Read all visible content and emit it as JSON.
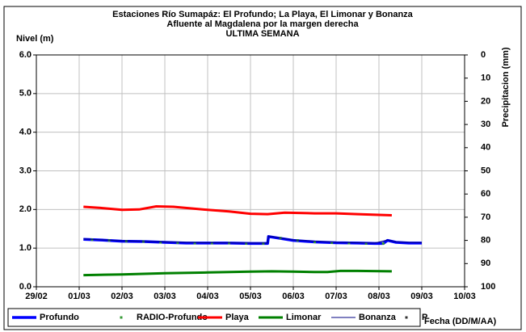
{
  "chart_data": {
    "type": "line",
    "title": "Estaciones Río Sumapáz: El Profundo; La Playa, El Limonar y Bonanza",
    "subtitle": [
      "Afluente al Magdalena por la margen derecha",
      "ULTIMA SEMANA"
    ],
    "y_label": "Nivel (m)",
    "y2_label": "Precipitacion (mm)",
    "x_label": "Fecha (DD/M/AA)",
    "xlim": [
      0,
      10
    ],
    "xticks": [
      {
        "value": 0,
        "label": "29/02"
      },
      {
        "value": 1,
        "label": "01/03"
      },
      {
        "value": 2,
        "label": "02/03"
      },
      {
        "value": 3,
        "label": "03/03"
      },
      {
        "value": 4,
        "label": "04/03"
      },
      {
        "value": 5,
        "label": "05/03"
      },
      {
        "value": 6,
        "label": "06/03"
      },
      {
        "value": 7,
        "label": "07/03"
      },
      {
        "value": 8,
        "label": "08/03"
      },
      {
        "value": 9,
        "label": "09/03"
      },
      {
        "value": 10,
        "label": "10/03"
      }
    ],
    "ylim": [
      0,
      6
    ],
    "yticks": [
      {
        "value": 0,
        "label": "0.0"
      },
      {
        "value": 1,
        "label": "1.0"
      },
      {
        "value": 2,
        "label": "2.0"
      },
      {
        "value": 3,
        "label": "3.0"
      },
      {
        "value": 4,
        "label": "4.0"
      },
      {
        "value": 5,
        "label": "5.0"
      },
      {
        "value": 6,
        "label": "6.0"
      }
    ],
    "y2lim": [
      100,
      0
    ],
    "y2ticks": [
      0,
      10,
      20,
      30,
      40,
      50,
      60,
      70,
      80,
      90,
      100
    ],
    "grid": true,
    "legend": "bottom",
    "series": [
      {
        "name": "Profundo",
        "color": "#0000ff",
        "width": 3.5,
        "x": [
          1.1,
          1.5,
          2,
          2.5,
          3,
          3.5,
          4,
          4.5,
          5,
          5.4,
          5.42,
          5.6,
          6,
          6.5,
          7,
          7.5,
          7.9,
          8.1,
          8.2,
          8.4,
          8.7,
          9.0
        ],
        "values": [
          1.23,
          1.21,
          1.18,
          1.17,
          1.15,
          1.13,
          1.13,
          1.13,
          1.12,
          1.12,
          1.3,
          1.27,
          1.2,
          1.16,
          1.14,
          1.13,
          1.12,
          1.12,
          1.2,
          1.15,
          1.13,
          1.13
        ]
      },
      {
        "name": "RADIO-Profundo",
        "color": "#339933",
        "marker": true,
        "x": [
          1.3,
          1.7,
          2.1,
          2.5,
          2.9,
          3.3,
          3.7,
          4.1,
          4.5,
          4.9,
          5.3,
          5.7,
          6.1,
          6.5,
          6.9,
          7.3,
          7.7,
          8.1
        ],
        "values": [
          1.22,
          1.2,
          1.18,
          1.17,
          1.15,
          1.14,
          1.13,
          1.13,
          1.13,
          1.12,
          1.12,
          1.26,
          1.2,
          1.16,
          1.14,
          1.13,
          1.12,
          1.12
        ]
      },
      {
        "name": "Playa",
        "color": "#ff0000",
        "width": 3,
        "x": [
          1.1,
          1.5,
          2,
          2.4,
          2.8,
          3.2,
          4,
          4.5,
          5,
          5.4,
          5.8,
          6.5,
          7,
          7.5,
          8,
          8.3
        ],
        "values": [
          2.07,
          2.04,
          1.99,
          2.0,
          2.08,
          2.07,
          1.99,
          1.95,
          1.89,
          1.88,
          1.92,
          1.9,
          1.9,
          1.88,
          1.86,
          1.85
        ]
      },
      {
        "name": "Limonar",
        "color": "#008000",
        "width": 3,
        "x": [
          1.1,
          2,
          3,
          4,
          5,
          5.5,
          6,
          6.5,
          6.8,
          7.1,
          7.5,
          8.3
        ],
        "values": [
          0.3,
          0.32,
          0.35,
          0.37,
          0.39,
          0.4,
          0.39,
          0.38,
          0.38,
          0.41,
          0.41,
          0.4
        ]
      },
      {
        "name": "Bonanza",
        "color": "#000080",
        "width": 1,
        "x": [
          1.1,
          2,
          3,
          4,
          5,
          5.4,
          5.42,
          6,
          7,
          7.9,
          8.2,
          8.4,
          9.0
        ],
        "values": [
          1.24,
          1.19,
          1.16,
          1.14,
          1.13,
          1.13,
          1.31,
          1.21,
          1.15,
          1.13,
          1.21,
          1.16,
          1.14
        ]
      },
      {
        "name": "P",
        "color": "#333333",
        "marker": true,
        "x": [],
        "values": []
      }
    ]
  }
}
